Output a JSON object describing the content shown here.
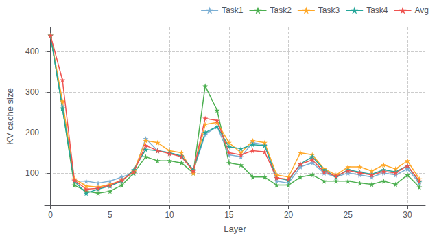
{
  "chart_data": {
    "type": "line",
    "x": [
      0,
      1,
      2,
      3,
      4,
      5,
      6,
      7,
      8,
      9,
      10,
      11,
      12,
      13,
      14,
      15,
      16,
      17,
      18,
      19,
      20,
      21,
      22,
      23,
      24,
      25,
      26,
      27,
      28,
      29,
      30,
      31
    ],
    "series": [
      {
        "name": "Task1",
        "color": "#7bafd4",
        "values": [
          440,
          265,
          80,
          80,
          75,
          80,
          90,
          100,
          185,
          155,
          150,
          140,
          105,
          195,
          215,
          145,
          140,
          175,
          170,
          80,
          75,
          115,
          125,
          100,
          90,
          100,
          95,
          90,
          100,
          95,
          110,
          75
        ]
      },
      {
        "name": "Task2",
        "color": "#4caf50",
        "values": [
          440,
          260,
          70,
          55,
          50,
          55,
          70,
          100,
          140,
          130,
          130,
          125,
          100,
          315,
          255,
          125,
          120,
          90,
          90,
          70,
          70,
          90,
          95,
          80,
          80,
          80,
          75,
          72,
          80,
          72,
          95,
          65
        ]
      },
      {
        "name": "Task3",
        "color": "#ffa726",
        "values": [
          440,
          278,
          85,
          68,
          65,
          72,
          82,
          105,
          180,
          175,
          155,
          150,
          100,
          220,
          225,
          175,
          150,
          180,
          175,
          95,
          90,
          150,
          145,
          110,
          95,
          115,
          115,
          105,
          120,
          110,
          130,
          85
        ]
      },
      {
        "name": "Task4",
        "color": "#26a69a",
        "values": [
          440,
          260,
          80,
          50,
          60,
          68,
          80,
          108,
          158,
          155,
          150,
          142,
          108,
          200,
          215,
          165,
          160,
          170,
          168,
          88,
          82,
          122,
          140,
          108,
          90,
          108,
          102,
          97,
          108,
          103,
          118,
          78
        ]
      },
      {
        "name": "Avg",
        "color": "#ef5350",
        "values": [
          440,
          330,
          82,
          60,
          62,
          70,
          82,
          103,
          168,
          155,
          148,
          140,
          105,
          235,
          230,
          150,
          145,
          155,
          152,
          88,
          84,
          122,
          132,
          103,
          92,
          106,
          100,
          95,
          104,
          100,
          118,
          80
        ]
      }
    ],
    "xlabel": "Layer",
    "ylabel": "KV cache size",
    "xlim": [
      -0.5,
      31.5
    ],
    "ylim": [
      20,
      460
    ],
    "xticks": [
      0,
      5,
      10,
      15,
      20,
      25,
      30
    ],
    "yticks": [
      100,
      200,
      300,
      400
    ],
    "grid": true,
    "legend": "upper right",
    "marker": "star"
  }
}
